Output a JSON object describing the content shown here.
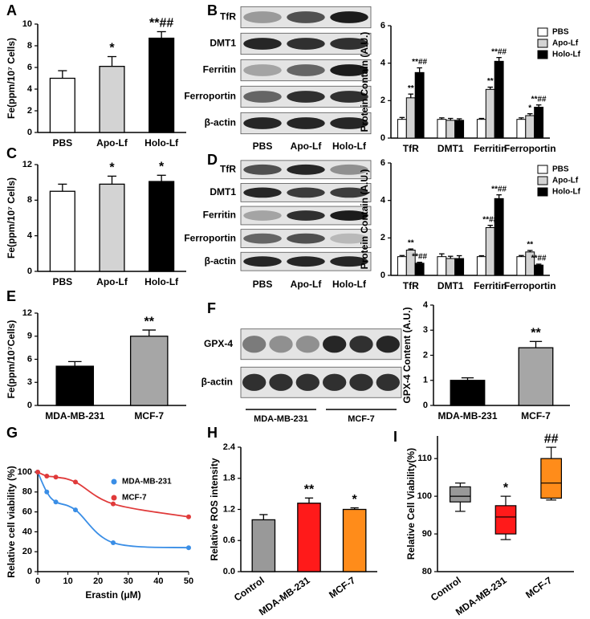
{
  "chart_data": [
    {
      "panel": "A",
      "type": "bar",
      "ylabel": "Fe(ppm/10⁷ Cells)",
      "categories": [
        "PBS",
        "Apo-Lf",
        "Holo-Lf"
      ],
      "values": [
        5.0,
        6.1,
        8.7
      ],
      "errors": [
        0.7,
        0.9,
        0.6
      ],
      "colors": [
        "#ffffff",
        "#d3d3d3",
        "#000000"
      ],
      "annotations": [
        null,
        "*",
        "**##"
      ],
      "ylim": [
        0,
        10
      ],
      "yticks": [
        0,
        2,
        4,
        6,
        8,
        10
      ]
    },
    {
      "panel": "B",
      "type": "blot",
      "rows": [
        "TfR",
        "DMT1",
        "Ferritin",
        "Ferroportin",
        "β-actin"
      ],
      "lanes": [
        "PBS",
        "Apo-Lf",
        "Holo-Lf"
      ]
    },
    {
      "type": "grouped_bar",
      "ylabel": "Protein Contain (A.U.)",
      "categories": [
        "TfR",
        "DMT1",
        "Ferritin",
        "Ferroportin"
      ],
      "series": [
        {
          "name": "PBS",
          "color": "#ffffff",
          "values": [
            1.0,
            1.0,
            1.0,
            1.0
          ],
          "errors": [
            0.1,
            0.08,
            0.05,
            0.08
          ],
          "annotations": [
            null,
            null,
            null,
            null
          ]
        },
        {
          "name": "Apo-Lf",
          "color": "#d3d3d3",
          "values": [
            2.15,
            0.95,
            2.6,
            1.2
          ],
          "errors": [
            0.2,
            0.1,
            0.12,
            0.1
          ],
          "annotations": [
            "**",
            null,
            "**",
            "*"
          ]
        },
        {
          "name": "Holo-Lf",
          "color": "#000000",
          "values": [
            3.5,
            0.95,
            4.1,
            1.65
          ],
          "errors": [
            0.25,
            0.08,
            0.2,
            0.12
          ],
          "annotations": [
            "**##",
            null,
            "**##",
            "**##"
          ]
        }
      ],
      "ylim": [
        0,
        6
      ],
      "yticks": [
        0,
        2,
        4,
        6
      ],
      "legend": "upper right"
    },
    {
      "panel": "C",
      "type": "bar",
      "ylabel": "Fe(ppm/10⁷ Cells)",
      "categories": [
        "PBS",
        "Apo-Lf",
        "Holo-Lf"
      ],
      "values": [
        9.0,
        9.8,
        10.1
      ],
      "errors": [
        0.8,
        0.9,
        0.7
      ],
      "colors": [
        "#ffffff",
        "#d3d3d3",
        "#000000"
      ],
      "annotations": [
        null,
        "*",
        "*"
      ],
      "ylim": [
        0,
        12
      ],
      "yticks": [
        0,
        4,
        8,
        12
      ]
    },
    {
      "panel": "D",
      "type": "blot",
      "rows": [
        "TfR",
        "DMT1",
        "Ferritin",
        "Ferroportin",
        "β-actin"
      ],
      "lanes": [
        "PBS",
        "Apo-Lf",
        "Holo-Lf"
      ]
    },
    {
      "type": "grouped_bar",
      "ylabel": "Protein Contain (A.U.)",
      "categories": [
        "TfR",
        "DMT1",
        "Ferritin",
        "Ferroportin"
      ],
      "series": [
        {
          "name": "PBS",
          "color": "#ffffff",
          "values": [
            1.0,
            1.0,
            1.0,
            1.0
          ],
          "errors": [
            0.06,
            0.15,
            0.05,
            0.06
          ],
          "annotations": [
            null,
            null,
            null,
            null
          ]
        },
        {
          "name": "Apo-Lf",
          "color": "#d3d3d3",
          "values": [
            1.35,
            0.9,
            2.55,
            1.25
          ],
          "errors": [
            0.06,
            0.12,
            0.12,
            0.08
          ],
          "annotations": [
            "**",
            null,
            "**##",
            "**"
          ]
        },
        {
          "name": "Holo-Lf",
          "color": "#000000",
          "values": [
            0.65,
            0.9,
            4.1,
            0.55
          ],
          "errors": [
            0.05,
            0.15,
            0.2,
            0.05
          ],
          "annotations": [
            "**##",
            null,
            "**##",
            "**##"
          ]
        }
      ],
      "ylim": [
        0,
        6
      ],
      "yticks": [
        0,
        2,
        4,
        6
      ],
      "legend": "upper right"
    },
    {
      "panel": "E",
      "type": "bar",
      "ylabel": "Fe(ppm/10⁷Cells)",
      "categories": [
        "MDA-MB-231",
        "MCF-7"
      ],
      "values": [
        5.1,
        9.0
      ],
      "errors": [
        0.6,
        0.8
      ],
      "colors": [
        "#000000",
        "#a6a6a6"
      ],
      "annotations": [
        null,
        "**"
      ],
      "ylim": [
        0,
        12
      ],
      "yticks": [
        0,
        3,
        6,
        9,
        12
      ]
    },
    {
      "panel": "F",
      "type": "blot",
      "rows": [
        "GPX-4",
        "β-actin"
      ],
      "lane_groups": [
        "MDA-MB-231",
        "MCF-7"
      ]
    },
    {
      "type": "bar",
      "ylabel": "GPX-4 Content (A.U.)",
      "categories": [
        "MDA-MB-231",
        "MCF-7"
      ],
      "values": [
        1.0,
        2.3
      ],
      "errors": [
        0.1,
        0.25
      ],
      "colors": [
        "#000000",
        "#a6a6a6"
      ],
      "annotations": [
        null,
        "**"
      ],
      "ylim": [
        0,
        4
      ],
      "yticks": [
        0,
        1,
        2,
        3,
        4
      ]
    },
    {
      "panel": "G",
      "type": "scatter",
      "xlabel": "Erastin (μM)",
      "ylabel": "Relative cell viability (%)",
      "series": [
        {
          "name": "MDA-MB-231",
          "color": "#3a8ee6",
          "x": [
            0,
            3,
            6,
            12.5,
            25,
            50
          ],
          "values": [
            100,
            80,
            70,
            62,
            29,
            24
          ]
        },
        {
          "name": "MCF-7",
          "color": "#e03a3a",
          "x": [
            0,
            3,
            6,
            12.5,
            25,
            50
          ],
          "values": [
            100,
            96,
            95,
            90,
            68,
            55
          ]
        }
      ],
      "xlim": [
        0,
        50
      ],
      "xticks": [
        0,
        10,
        20,
        30,
        40,
        50
      ],
      "ylim": [
        0,
        100
      ],
      "yticks": [
        0,
        20,
        40,
        60,
        80,
        100
      ],
      "legend": "upper right"
    },
    {
      "panel": "H",
      "type": "bar",
      "ylabel": "Relative ROS intensity",
      "categories": [
        "Control",
        "MDA-MB-231",
        "MCF-7"
      ],
      "values": [
        1.0,
        1.32,
        1.2
      ],
      "errors": [
        0.1,
        0.1,
        0.03
      ],
      "colors": [
        "#999999",
        "#ff1a1a",
        "#ff8c1a"
      ],
      "annotations": [
        null,
        "**",
        "*"
      ],
      "ylim": [
        0,
        2.4
      ],
      "yticks": [
        {
          "value": 0,
          "label": "0.0"
        },
        0.6,
        1.2,
        1.8,
        2.4
      ]
    },
    {
      "panel": "I",
      "type": "box",
      "ylabel": "Relative Cell Viability(%)",
      "categories": [
        "Control",
        "MDA-MB-231",
        "MCF-7"
      ],
      "boxes": [
        {
          "min": 96,
          "q1": 98.5,
          "median": 100,
          "q3": 102.5,
          "max": 103.5
        },
        {
          "min": 88.5,
          "q1": 90,
          "median": 94.5,
          "q3": 97.5,
          "max": 100
        },
        {
          "min": 99,
          "q1": 99.5,
          "median": 103.5,
          "q3": 110,
          "max": 113
        }
      ],
      "colors": [
        "#999999",
        "#ff1a1a",
        "#ff8c1a"
      ],
      "annotations": [
        null,
        "*",
        "##"
      ],
      "ylim": [
        80,
        116
      ],
      "yticks": [
        80,
        90,
        100,
        110
      ]
    }
  ]
}
